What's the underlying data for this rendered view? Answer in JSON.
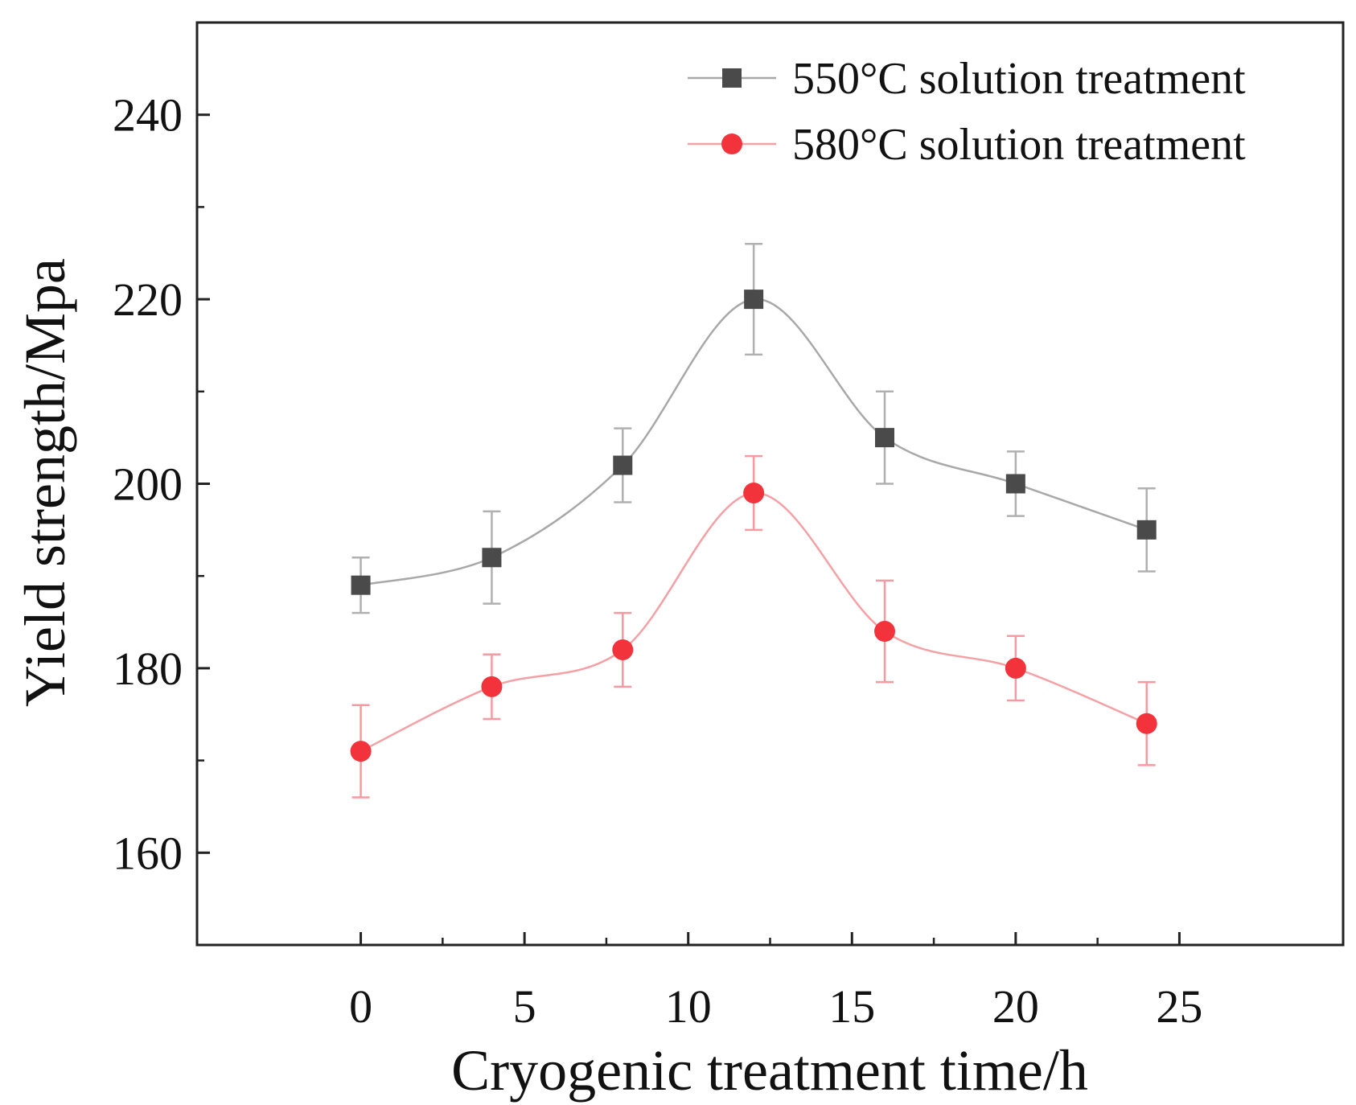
{
  "chart_data": {
    "type": "line",
    "title": "",
    "xlabel": "Cryogenic treatment time/h",
    "ylabel": "Yield strength/Mpa",
    "xlim": [
      -5,
      30
    ],
    "ylim": [
      150,
      250
    ],
    "xticks": [
      0,
      5,
      10,
      15,
      20,
      25
    ],
    "yticks": [
      160,
      180,
      200,
      220,
      240
    ],
    "x": [
      0,
      4,
      8,
      12,
      16,
      20,
      24
    ],
    "legend_position": "top-right",
    "series": [
      {
        "name": "550°C solution treatment",
        "marker": "square",
        "color": "#4a4a4a",
        "line_color": "#a8a8a8",
        "values": [
          189,
          192,
          202,
          220,
          205,
          200,
          195
        ],
        "errors": [
          3,
          5,
          4,
          6,
          5,
          3.5,
          4.5
        ]
      },
      {
        "name": "580°C solution treatment",
        "marker": "circle",
        "color": "#f2333b",
        "line_color": "#f4a0a4",
        "values": [
          171,
          178,
          182,
          199,
          184,
          180,
          174
        ],
        "errors": [
          5,
          3.5,
          4,
          4,
          5.5,
          3.5,
          4.5
        ]
      }
    ]
  }
}
